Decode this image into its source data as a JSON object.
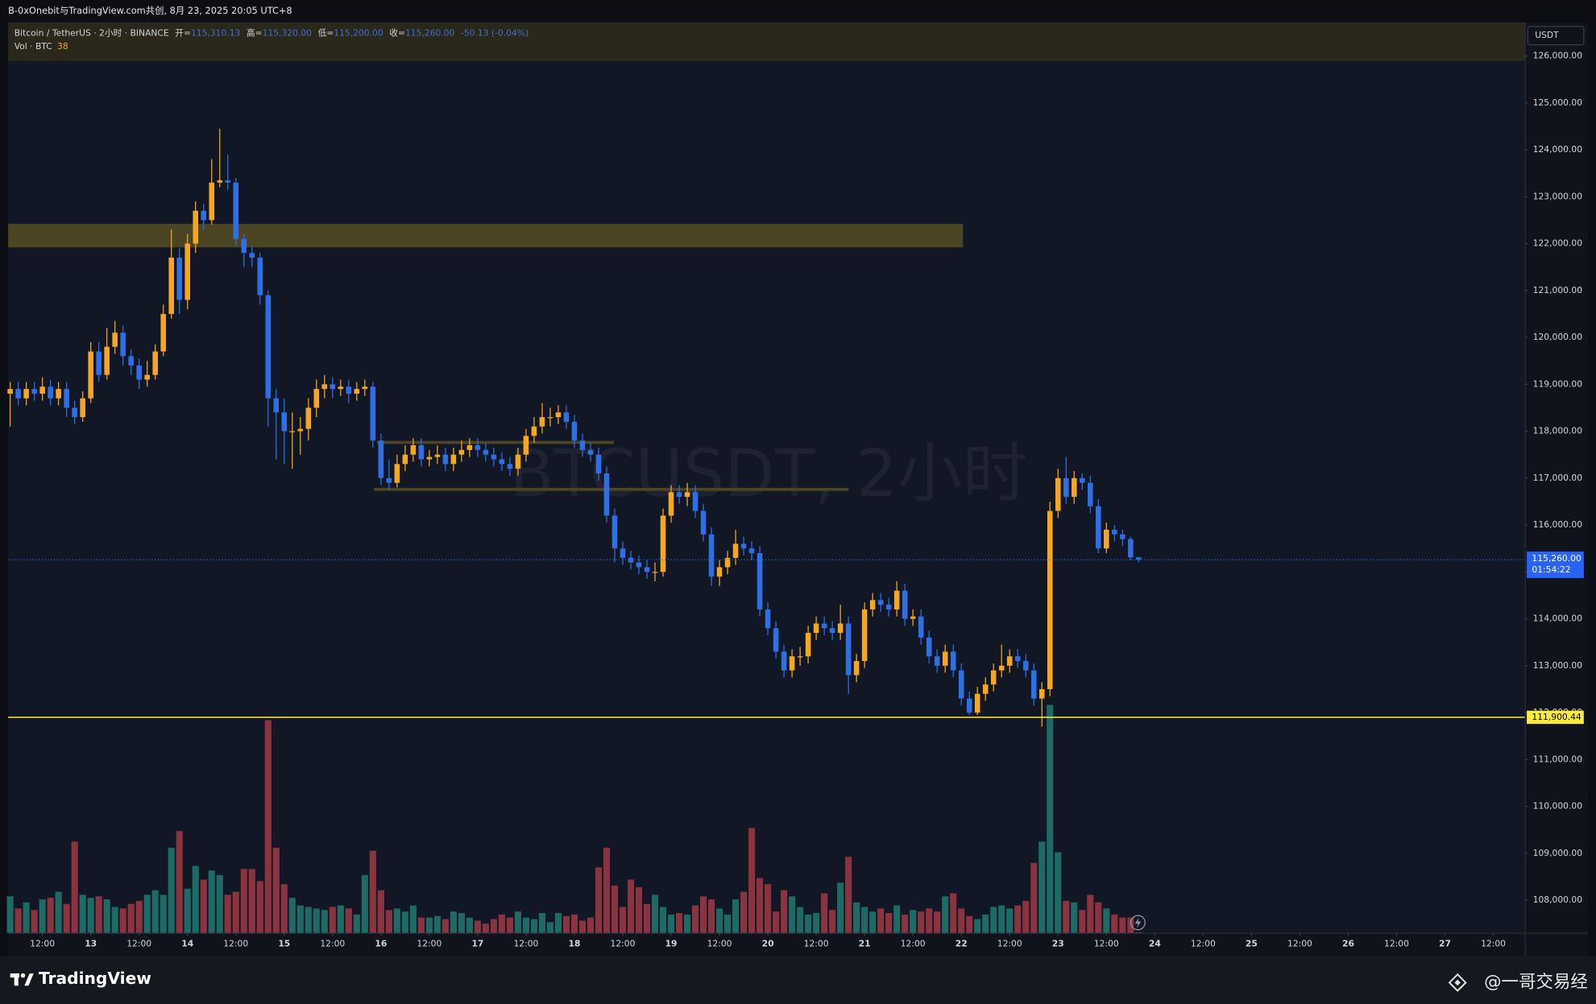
{
  "page": {
    "header": "B-0xOnebit与TradingView.com共创, 8月 23, 2025 20:05 UTC+8",
    "brand": "TradingView",
    "credit": "@一哥交易经"
  },
  "chart_data": {
    "type": "candlestick",
    "legend": {
      "symbol": "Bitcoin / TetherUS · 2小时 · BINANCE",
      "o_label": "开=",
      "o": "115,310.13",
      "h_label": "高=",
      "h": "115,320.00",
      "l_label": "低=",
      "l": "115,200.00",
      "c_label": "收=",
      "c": "115,260.00",
      "change": "-50.13 (-0.04%)",
      "volume_label": "Vol · BTC"
    },
    "watermark": "BTCUSDT, 2小时",
    "currency": "USDT",
    "countdown": "01:54:22",
    "last_price_label": "115,260.00",
    "up_color": "#f5a623",
    "down_color": "#2f6fe4",
    "volume_up_color": "#1d6b64",
    "volume_down_color": "#8c3340",
    "grid": false,
    "hline": {
      "value": 111900.44,
      "label": "111,900.44",
      "color": "#ffeb3b"
    },
    "zones": [
      {
        "low": 121920,
        "high": 122420,
        "from": -0.25,
        "to": 118.2,
        "color": "#4b4524"
      }
    ],
    "levels": [
      {
        "value": 117760,
        "from": 45.5,
        "to": 74.9,
        "color": "#4b4524"
      },
      {
        "value": 116760,
        "from": 45.1,
        "to": 104,
        "color": "#4b4524"
      }
    ],
    "xlim": [
      -0.25,
      187.9
    ],
    "xticks": [
      {
        "value": 4,
        "label": "12:00"
      },
      {
        "value": 10,
        "label": "13"
      },
      {
        "value": 16,
        "label": "12:00"
      },
      {
        "value": 22,
        "label": "14"
      },
      {
        "value": 28,
        "label": "12:00"
      },
      {
        "value": 34,
        "label": "15"
      },
      {
        "value": 40,
        "label": "12:00"
      },
      {
        "value": 46,
        "label": "16"
      },
      {
        "value": 52,
        "label": "12:00"
      },
      {
        "value": 58,
        "label": "17"
      },
      {
        "value": 64,
        "label": "12:00"
      },
      {
        "value": 70,
        "label": "18"
      },
      {
        "value": 76,
        "label": "12:00"
      },
      {
        "value": 82,
        "label": "19"
      },
      {
        "value": 88,
        "label": "12:00"
      },
      {
        "value": 94,
        "label": "20"
      },
      {
        "value": 100,
        "label": "12:00"
      },
      {
        "value": 106,
        "label": "21"
      },
      {
        "value": 112,
        "label": "12:00"
      },
      {
        "value": 118,
        "label": "22"
      },
      {
        "value": 124,
        "label": "12:00"
      },
      {
        "value": 130,
        "label": "23"
      },
      {
        "value": 136,
        "label": "12:00"
      },
      {
        "value": 142,
        "label": "24"
      },
      {
        "value": 148,
        "label": "12:00"
      },
      {
        "value": 154,
        "label": "25"
      },
      {
        "value": 160,
        "label": "12:00"
      },
      {
        "value": 166,
        "label": "26"
      },
      {
        "value": 172,
        "label": "12:00"
      },
      {
        "value": 178,
        "label": "27"
      },
      {
        "value": 184,
        "label": "12:00"
      }
    ],
    "ylim": [
      107306,
      126716
    ],
    "yticks": [
      {
        "value": 108000,
        "label": "108,000.00"
      },
      {
        "value": 109000,
        "label": "109,000.00"
      },
      {
        "value": 110000,
        "label": "110,000.00"
      },
      {
        "value": 111000,
        "label": "111,000.00"
      },
      {
        "value": 112000,
        "label": "112,000.00"
      },
      {
        "value": 113000,
        "label": "113,000.00"
      },
      {
        "value": 114000,
        "label": "114,000.00"
      },
      {
        "value": 115000,
        "label": "115,000.00"
      },
      {
        "value": 116000,
        "label": "116,000.00"
      },
      {
        "value": 117000,
        "label": "117,000.00"
      },
      {
        "value": 118000,
        "label": "118,000.00"
      },
      {
        "value": 119000,
        "label": "119,000.00"
      },
      {
        "value": 120000,
        "label": "120,000.00"
      },
      {
        "value": 121000,
        "label": "121,000.00"
      },
      {
        "value": 122000,
        "label": "122,000.00"
      },
      {
        "value": 123000,
        "label": "123,000.00"
      },
      {
        "value": 124000,
        "label": "124,000.00"
      },
      {
        "value": 125000,
        "label": "125,000.00"
      },
      {
        "value": 126000,
        "label": "126,000.00"
      }
    ],
    "volume_lim": [
      0,
      15000
    ],
    "open": [
      118800,
      118900,
      118700,
      118900,
      118800,
      118950,
      118700,
      118900,
      118500,
      118300,
      118700,
      119700,
      119200,
      119800,
      120100,
      119600,
      119400,
      119100,
      119200,
      119700,
      120500,
      121700,
      120800,
      122000,
      122700,
      122500,
      123300,
      123350,
      123300,
      122100,
      121800,
      121700,
      120900,
      118700,
      118400,
      118000,
      118000,
      118050,
      118500,
      118900,
      119000,
      118900,
      118950,
      118800,
      118900,
      118950,
      117800,
      117000,
      116900,
      117300,
      117500,
      117700,
      117400,
      117450,
      117500,
      117300,
      117500,
      117600,
      117700,
      117600,
      117500,
      117400,
      117300,
      117200,
      117500,
      117900,
      118100,
      118300,
      118300,
      118400,
      118200,
      117800,
      117600,
      117500,
      117100,
      116200,
      115500,
      115300,
      115200,
      115100,
      115000,
      115000,
      116200,
      116700,
      116600,
      116700,
      116300,
      115800,
      114900,
      115100,
      115300,
      115600,
      115500,
      115400,
      114200,
      113800,
      113300,
      112900,
      113200,
      113200,
      113700,
      113900,
      113800,
      113700,
      113900,
      112800,
      113100,
      114200,
      114400,
      114300,
      114200,
      114600,
      114000,
      114050,
      113600,
      113200,
      113000,
      113300,
      112900,
      112300,
      112000,
      112400,
      112600,
      112900,
      113000,
      113200,
      113100,
      112900,
      112300,
      112500,
      116300,
      117000,
      116600,
      117000,
      116900,
      116400,
      115500,
      115900,
      115800,
      115700,
      115310.13
    ],
    "high": [
      119050,
      119050,
      119050,
      119050,
      119150,
      119100,
      119050,
      119050,
      118650,
      118850,
      119900,
      119900,
      120200,
      120350,
      120250,
      119750,
      119550,
      119500,
      119850,
      120700,
      122300,
      121900,
      122200,
      122900,
      122850,
      123800,
      124450,
      123900,
      123400,
      122200,
      121950,
      121800,
      121000,
      118900,
      118700,
      118400,
      118300,
      118700,
      119100,
      119200,
      119150,
      119100,
      119100,
      119050,
      119100,
      119050,
      117950,
      117400,
      117500,
      117700,
      117850,
      117850,
      117600,
      117700,
      117650,
      117650,
      117800,
      117850,
      117850,
      117750,
      117650,
      117550,
      117450,
      117650,
      118050,
      118300,
      118600,
      118500,
      118550,
      118550,
      118350,
      117950,
      117750,
      117650,
      117250,
      116350,
      115650,
      115450,
      115350,
      115250,
      115200,
      116350,
      116850,
      116850,
      116900,
      116850,
      116450,
      115950,
      115250,
      115450,
      115900,
      115750,
      115650,
      115550,
      114350,
      113950,
      113450,
      113350,
      113400,
      113850,
      114050,
      114050,
      113950,
      114300,
      114050,
      113250,
      114350,
      114550,
      114550,
      114450,
      114800,
      114750,
      114200,
      114200,
      113750,
      113350,
      113450,
      113450,
      113050,
      112450,
      112550,
      112750,
      113050,
      113450,
      113350,
      113350,
      113250,
      113050,
      112650,
      116500,
      117200,
      117450,
      117150,
      117100,
      117050,
      116550,
      116050,
      116000,
      115900,
      115750,
      115320
    ],
    "low": [
      118100,
      118550,
      118550,
      118650,
      118650,
      118550,
      118550,
      118300,
      118150,
      118200,
      118600,
      119050,
      119100,
      119650,
      119400,
      119200,
      118900,
      118950,
      119100,
      119600,
      120400,
      120500,
      120600,
      121800,
      122300,
      122400,
      123200,
      123150,
      121950,
      121500,
      121500,
      120700,
      118100,
      117400,
      117300,
      117200,
      117500,
      117800,
      118300,
      118700,
      118700,
      118750,
      118600,
      118650,
      118750,
      117650,
      116850,
      116750,
      116800,
      117150,
      117350,
      117250,
      117250,
      117300,
      117150,
      117150,
      117350,
      117450,
      117450,
      117350,
      117250,
      117150,
      117050,
      117050,
      117350,
      117750,
      117950,
      118100,
      118150,
      118050,
      117650,
      117450,
      117350,
      116950,
      116050,
      115200,
      115150,
      115050,
      114950,
      114850,
      114800,
      114900,
      116050,
      116450,
      116400,
      116150,
      115650,
      114700,
      114700,
      114950,
      115150,
      115350,
      115250,
      114050,
      113650,
      113150,
      112750,
      112750,
      113000,
      113050,
      113550,
      113650,
      113550,
      113550,
      112400,
      112650,
      112950,
      114050,
      114150,
      114050,
      114050,
      113850,
      113850,
      113450,
      113050,
      112850,
      112850,
      112750,
      112150,
      111950,
      111950,
      112250,
      112450,
      112750,
      112850,
      112950,
      112750,
      112150,
      111700,
      112350,
      116150,
      116450,
      116450,
      116750,
      116250,
      115400,
      115400,
      115650,
      115550,
      115250,
      115200
    ],
    "close": [
      118900,
      118700,
      118900,
      118800,
      118950,
      118700,
      118900,
      118500,
      118300,
      118700,
      119700,
      119200,
      119800,
      120100,
      119600,
      119400,
      119100,
      119200,
      119700,
      120500,
      121700,
      120800,
      122000,
      122700,
      122500,
      123300,
      123350,
      123300,
      122100,
      121800,
      121700,
      120900,
      118700,
      118400,
      118000,
      118000,
      118050,
      118500,
      118900,
      119000,
      118900,
      118950,
      118800,
      118900,
      118950,
      117800,
      117000,
      116900,
      117300,
      117500,
      117700,
      117400,
      117450,
      117500,
      117300,
      117500,
      117600,
      117700,
      117600,
      117500,
      117400,
      117300,
      117200,
      117500,
      117900,
      118100,
      118300,
      118300,
      118400,
      118200,
      117800,
      117600,
      117500,
      117100,
      116200,
      115500,
      115300,
      115200,
      115100,
      115000,
      115000,
      116200,
      116700,
      116600,
      116700,
      116300,
      115800,
      114900,
      115100,
      115300,
      115600,
      115500,
      115400,
      114200,
      113800,
      113300,
      112900,
      113200,
      113200,
      113700,
      113900,
      113800,
      113700,
      113900,
      112800,
      113100,
      114200,
      114400,
      114300,
      114200,
      114600,
      114000,
      114050,
      113600,
      113200,
      113000,
      113300,
      112900,
      112300,
      112000,
      112400,
      112600,
      112900,
      113000,
      113200,
      113100,
      112900,
      112300,
      112500,
      116300,
      117000,
      116600,
      117000,
      116900,
      116400,
      115500,
      115900,
      115800,
      115700,
      115310.13,
      115260
    ],
    "volume": [
      2400,
      1600,
      2000,
      1500,
      2200,
      2300,
      2700,
      1900,
      6000,
      2500,
      2300,
      2400,
      2200,
      1700,
      1600,
      1900,
      2100,
      2500,
      2800,
      2500,
      5600,
      6700,
      2900,
      4400,
      3500,
      4100,
      3800,
      2500,
      2700,
      4200,
      4200,
      3400,
      14000,
      5600,
      3200,
      2300,
      1800,
      1700,
      1600,
      1500,
      1700,
      1800,
      1600,
      1200,
      3800,
      5400,
      2800,
      1500,
      1600,
      1400,
      1800,
      1000,
      1000,
      1100,
      900,
      1400,
      1300,
      1000,
      800,
      600,
      900,
      1200,
      1000,
      1400,
      1000,
      900,
      1300,
      700,
      1300,
      1100,
      1200,
      800,
      1000,
      4300,
      5600,
      3100,
      1700,
      3500,
      3000,
      1900,
      2500,
      1700,
      1200,
      1300,
      1200,
      1800,
      2400,
      2200,
      1600,
      1200,
      2200,
      2700,
      6900,
      3600,
      3200,
      1400,
      2800,
      2400,
      1700,
      1200,
      1300,
      2600,
      1500,
      3300,
      5000,
      2000,
      1700,
      1400,
      1600,
      1300,
      1800,
      1200,
      1500,
      1400,
      1600,
      1400,
      2400,
      2600,
      1600,
      1100,
      900,
      1200,
      1700,
      1800,
      1600,
      1800,
      2100,
      4600,
      6000,
      15000,
      5300,
      2100,
      2000,
      1500,
      2500,
      2000,
      1600,
      1200,
      1000,
      1000,
      38
    ]
  }
}
